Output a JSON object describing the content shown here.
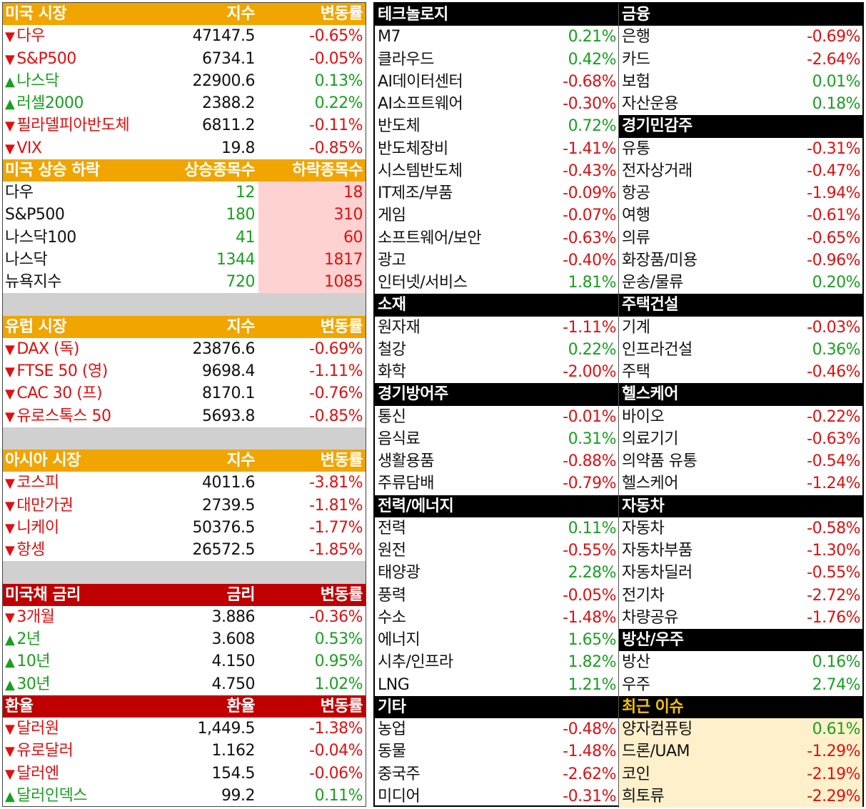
{
  "left": {
    "us_market": {
      "header": [
        "미국 시장",
        "지수",
        "변동률"
      ],
      "rows": [
        {
          "name": "다우",
          "value": "47147.5",
          "change": "-0.65%",
          "dir": "down"
        },
        {
          "name": "S&P500",
          "value": "6734.1",
          "change": "-0.05%",
          "dir": "down"
        },
        {
          "name": "나스닥",
          "value": "22900.6",
          "change": "0.13%",
          "dir": "up"
        },
        {
          "name": "러셀2000",
          "value": "2388.2",
          "change": "0.22%",
          "dir": "up"
        },
        {
          "name": "필라델피아반도체",
          "value": "6811.2",
          "change": "-0.11%",
          "dir": "down"
        },
        {
          "name": "VIX",
          "value": "19.8",
          "change": "-0.85%",
          "dir": "down"
        }
      ]
    },
    "us_breadth": {
      "header": [
        "미국 상승 하락",
        "상승종목수",
        "하락종목수"
      ],
      "rows": [
        {
          "name": "다우",
          "up": "12",
          "down": "18"
        },
        {
          "name": "S&P500",
          "up": "180",
          "down": "310"
        },
        {
          "name": "나스닥100",
          "up": "41",
          "down": "60"
        },
        {
          "name": "나스닥",
          "up": "1344",
          "down": "1817"
        },
        {
          "name": "뉴욕지수",
          "up": "720",
          "down": "1085"
        }
      ]
    },
    "europe": {
      "header": [
        "유럽 시장",
        "지수",
        "변동률"
      ],
      "rows": [
        {
          "name": "DAX (독)",
          "value": "23876.6",
          "change": "-0.69%",
          "dir": "down"
        },
        {
          "name": "FTSE 50 (영)",
          "value": "9698.4",
          "change": "-1.11%",
          "dir": "down"
        },
        {
          "name": "CAC 30 (프)",
          "value": "8170.1",
          "change": "-0.76%",
          "dir": "down"
        },
        {
          "name": "유로스톡스 50",
          "value": "5693.8",
          "change": "-0.85%",
          "dir": "down"
        }
      ]
    },
    "asia": {
      "header": [
        "아시아 시장",
        "지수",
        "변동률"
      ],
      "rows": [
        {
          "name": "코스피",
          "value": "4011.6",
          "change": "-3.81%",
          "dir": "down"
        },
        {
          "name": "대만가권",
          "value": "2739.5",
          "change": "-1.81%",
          "dir": "down"
        },
        {
          "name": "니케이",
          "value": "50376.5",
          "change": "-1.77%",
          "dir": "down"
        },
        {
          "name": "항셍",
          "value": "26572.5",
          "change": "-1.85%",
          "dir": "down"
        }
      ]
    },
    "treasury": {
      "header": [
        "미국채 금리",
        "금리",
        "변동률"
      ],
      "rows": [
        {
          "name": "3개월",
          "value": "3.886",
          "change": "-0.36%",
          "dir": "down"
        },
        {
          "name": "2년",
          "value": "3.608",
          "change": "0.53%",
          "dir": "up"
        },
        {
          "name": "10년",
          "value": "4.150",
          "change": "0.95%",
          "dir": "up"
        },
        {
          "name": "30년",
          "value": "4.750",
          "change": "1.02%",
          "dir": "up"
        }
      ]
    },
    "fx": {
      "header": [
        "환율",
        "환율",
        "변동률"
      ],
      "rows": [
        {
          "name": "달러원",
          "value": "1,449.5",
          "change": "-1.38%",
          "dir": "down"
        },
        {
          "name": "유로달러",
          "value": "1.162",
          "change": "-0.04%",
          "dir": "down"
        },
        {
          "name": "달러엔",
          "value": "154.5",
          "change": "-0.06%",
          "dir": "down"
        },
        {
          "name": "달러인덱스",
          "value": "99.2",
          "change": "0.11%",
          "dir": "up"
        }
      ]
    }
  },
  "right": {
    "rows": [
      {
        "l": {
          "h": "테크놀로지"
        },
        "r": {
          "h": "금융"
        }
      },
      {
        "l": {
          "n": "M7",
          "v": "0.21%",
          "d": "up"
        },
        "r": {
          "n": "은행",
          "v": "-0.69%",
          "d": "down"
        }
      },
      {
        "l": {
          "n": "클라우드",
          "v": "0.42%",
          "d": "up"
        },
        "r": {
          "n": "카드",
          "v": "-2.64%",
          "d": "down"
        }
      },
      {
        "l": {
          "n": "AI데이터센터",
          "v": "-0.68%",
          "d": "down"
        },
        "r": {
          "n": "보험",
          "v": "0.01%",
          "d": "up"
        }
      },
      {
        "l": {
          "n": "AI소프트웨어",
          "v": "-0.30%",
          "d": "down"
        },
        "r": {
          "n": "자산운용",
          "v": "0.18%",
          "d": "up"
        }
      },
      {
        "l": {
          "n": "반도체",
          "v": "0.72%",
          "d": "up"
        },
        "r": {
          "h": "경기민감주"
        }
      },
      {
        "l": {
          "n": "반도체장비",
          "v": "-1.41%",
          "d": "down"
        },
        "r": {
          "n": "유통",
          "v": "-0.31%",
          "d": "down"
        }
      },
      {
        "l": {
          "n": "시스템반도체",
          "v": "-0.43%",
          "d": "down"
        },
        "r": {
          "n": "전자상거래",
          "v": "-0.47%",
          "d": "down"
        }
      },
      {
        "l": {
          "n": "IT제조/부품",
          "v": "-0.09%",
          "d": "down"
        },
        "r": {
          "n": "항공",
          "v": "-1.94%",
          "d": "down"
        }
      },
      {
        "l": {
          "n": "게임",
          "v": "-0.07%",
          "d": "down"
        },
        "r": {
          "n": "여행",
          "v": "-0.61%",
          "d": "down"
        }
      },
      {
        "l": {
          "n": "소프트웨어/보안",
          "v": "-0.63%",
          "d": "down"
        },
        "r": {
          "n": "의류",
          "v": "-0.65%",
          "d": "down"
        }
      },
      {
        "l": {
          "n": "광고",
          "v": "-0.40%",
          "d": "down"
        },
        "r": {
          "n": "화장품/미용",
          "v": "-0.96%",
          "d": "down"
        }
      },
      {
        "l": {
          "n": "인터넷/서비스",
          "v": "1.81%",
          "d": "up"
        },
        "r": {
          "n": "운송/물류",
          "v": "0.20%",
          "d": "up"
        }
      },
      {
        "l": {
          "h": "소재"
        },
        "r": {
          "h": "주택건설"
        }
      },
      {
        "l": {
          "n": "원자재",
          "v": "-1.11%",
          "d": "down"
        },
        "r": {
          "n": "기계",
          "v": "-0.03%",
          "d": "down"
        }
      },
      {
        "l": {
          "n": "철강",
          "v": "0.22%",
          "d": "up"
        },
        "r": {
          "n": "인프라건설",
          "v": "0.36%",
          "d": "up"
        }
      },
      {
        "l": {
          "n": "화학",
          "v": "-2.00%",
          "d": "down"
        },
        "r": {
          "n": "주택",
          "v": "-0.46%",
          "d": "down"
        }
      },
      {
        "l": {
          "h": "경기방어주"
        },
        "r": {
          "h": "헬스케어"
        }
      },
      {
        "l": {
          "n": "통신",
          "v": "-0.01%",
          "d": "down"
        },
        "r": {
          "n": "바이오",
          "v": "-0.22%",
          "d": "down"
        }
      },
      {
        "l": {
          "n": "음식료",
          "v": "0.31%",
          "d": "up"
        },
        "r": {
          "n": "의료기기",
          "v": "-0.63%",
          "d": "down"
        }
      },
      {
        "l": {
          "n": "생활용품",
          "v": "-0.88%",
          "d": "down"
        },
        "r": {
          "n": "의약품 유통",
          "v": "-0.54%",
          "d": "down"
        }
      },
      {
        "l": {
          "n": "주류담배",
          "v": "-0.79%",
          "d": "down"
        },
        "r": {
          "n": "헬스케어",
          "v": "-1.24%",
          "d": "down"
        }
      },
      {
        "l": {
          "h": "전력/에너지"
        },
        "r": {
          "h": "자동차"
        }
      },
      {
        "l": {
          "n": "전력",
          "v": "0.11%",
          "d": "up"
        },
        "r": {
          "n": "자동차",
          "v": "-0.58%",
          "d": "down"
        }
      },
      {
        "l": {
          "n": "원전",
          "v": "-0.55%",
          "d": "down"
        },
        "r": {
          "n": "자동차부품",
          "v": "-1.30%",
          "d": "down"
        }
      },
      {
        "l": {
          "n": "태양광",
          "v": "2.28%",
          "d": "up"
        },
        "r": {
          "n": "자동차딜러",
          "v": "-0.55%",
          "d": "down"
        }
      },
      {
        "l": {
          "n": "풍력",
          "v": "-0.05%",
          "d": "down"
        },
        "r": {
          "n": "전기차",
          "v": "-2.72%",
          "d": "down"
        }
      },
      {
        "l": {
          "n": "수소",
          "v": "-1.48%",
          "d": "down"
        },
        "r": {
          "n": "차량공유",
          "v": "-1.76%",
          "d": "down"
        }
      },
      {
        "l": {
          "n": "에너지",
          "v": "1.65%",
          "d": "up"
        },
        "r": {
          "h": "방산/우주"
        }
      },
      {
        "l": {
          "n": "시추/인프라",
          "v": "1.82%",
          "d": "up"
        },
        "r": {
          "n": "방산",
          "v": "0.16%",
          "d": "up"
        }
      },
      {
        "l": {
          "n": "LNG",
          "v": "1.21%",
          "d": "up"
        },
        "r": {
          "n": "우주",
          "v": "2.74%",
          "d": "up"
        }
      },
      {
        "l": {
          "h": "기타"
        },
        "r": {
          "h": "최근 이슈",
          "hot": true
        }
      },
      {
        "l": {
          "n": "농업",
          "v": "-0.48%",
          "d": "down"
        },
        "r": {
          "n": "양자컴퓨팅",
          "v": "0.61%",
          "d": "up",
          "hot": true
        }
      },
      {
        "l": {
          "n": "동물",
          "v": "-1.48%",
          "d": "down"
        },
        "r": {
          "n": "드론/UAM",
          "v": "-1.29%",
          "d": "down",
          "hot": true
        }
      },
      {
        "l": {
          "n": "중국주",
          "v": "-2.62%",
          "d": "down"
        },
        "r": {
          "n": "코인",
          "v": "-2.19%",
          "d": "down",
          "hot": true
        }
      },
      {
        "l": {
          "n": "미디어",
          "v": "-0.31%",
          "d": "down"
        },
        "r": {
          "n": "희토류",
          "v": "-2.29%",
          "d": "down",
          "hot": true
        }
      }
    ]
  },
  "colors": {
    "orange": "#f0a500",
    "red_header": "#c00000",
    "black_header": "#000000",
    "up": "#18a01f",
    "down": "#e01010",
    "pink": "#ffd2d2",
    "hot": "#fff0cc",
    "hot_title": "#f5c400"
  },
  "icons": {
    "down": "down-triangle-icon",
    "up": "up-triangle-icon"
  }
}
